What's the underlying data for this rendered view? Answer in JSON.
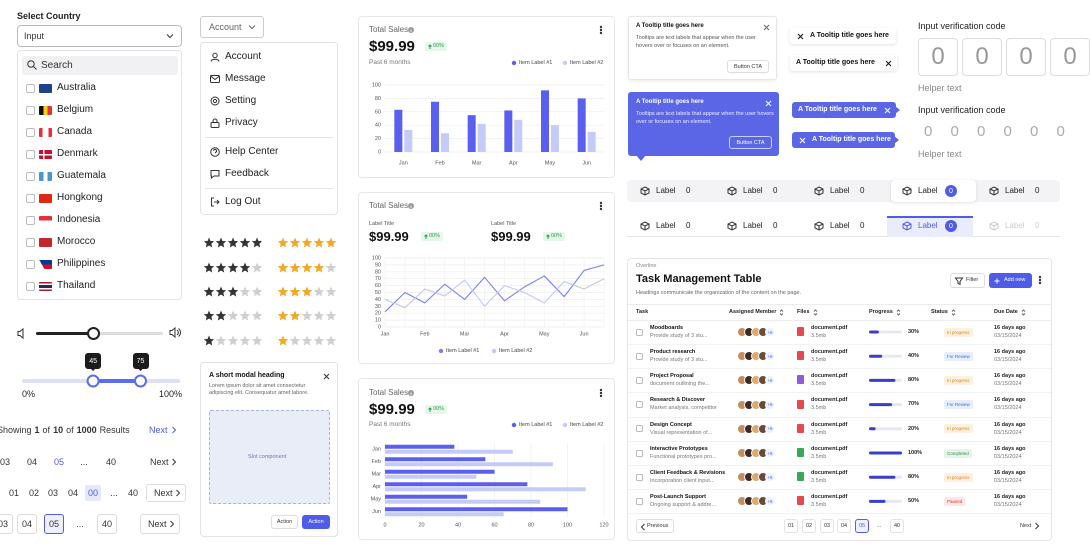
{
  "country_select": {
    "label": "Select Country",
    "placeholder": "Input",
    "search": "Search",
    "countries": [
      "Australia",
      "Belgium",
      "Canada",
      "Denmark",
      "Guatemala",
      "Hongkong",
      "Indonesia",
      "Morocco",
      "Philippines",
      "Thailand"
    ]
  },
  "range_slider": {
    "low": 45,
    "high": 75,
    "min_label": "0%",
    "max_label": "100%"
  },
  "pagination": {
    "summary": [
      "Showing",
      "1",
      "of",
      "10",
      "of",
      "1000",
      "Results"
    ],
    "next": "Next",
    "rows": [
      [
        "03",
        "04",
        "05",
        "...",
        "40"
      ],
      [
        "01",
        "02",
        "03",
        "04",
        "00",
        "...",
        "40"
      ],
      [
        "03",
        "04",
        "05",
        "...",
        "40"
      ]
    ]
  },
  "account_menu": {
    "button": "Account",
    "items": [
      "Account",
      "Message",
      "Setting",
      "Privacy",
      "Help Center",
      "Feedback",
      "Log Out"
    ]
  },
  "ratings": [
    5,
    4,
    3,
    2,
    1
  ],
  "modal": {
    "heading": "A short modal heading",
    "body": "Lorem ipsum dolor sit amet consectetur adipiscing elit. Consequatur amet labore.",
    "slot": "Slot component",
    "actions": [
      "Action",
      "Action"
    ]
  },
  "charts": [
    {
      "type": "bar",
      "title": "Total Sales",
      "value": "$99.99",
      "change": "00%",
      "period": "Past 6 months",
      "categories": [
        "Jan",
        "Feb",
        "Mar",
        "Apr",
        "May",
        "Jun"
      ],
      "series": [
        {
          "name": "Item Label #1",
          "color": "#5b5fef",
          "values": [
            63,
            75,
            55,
            62,
            92,
            80
          ]
        },
        {
          "name": "Item Label #2",
          "color": "#c5cbf8",
          "values": [
            33,
            28,
            42,
            48,
            40,
            30
          ]
        }
      ],
      "ylim": [
        0,
        100
      ],
      "yticks": [
        0,
        20,
        40,
        60,
        80,
        100
      ],
      "grid": true
    },
    {
      "type": "line",
      "title": "Total Sales",
      "kpis": [
        {
          "label": "Label Title",
          "value": "$99.99",
          "change": "00%"
        },
        {
          "label": "Label Title",
          "value": "$99.99",
          "change": "00%"
        }
      ],
      "categories": [
        "Jan",
        null,
        "Feb",
        null,
        "Mar",
        null,
        "Apr",
        null,
        "May",
        null,
        "Jun",
        null
      ],
      "series": [
        {
          "name": "Item Label #1",
          "color": "#7b81ee",
          "values": [
            22,
            50,
            35,
            62,
            40,
            72,
            38,
            58,
            74,
            44,
            82,
            90
          ]
        },
        {
          "name": "Item Label #2",
          "color": "#c3c8f5",
          "values": [
            40,
            28,
            55,
            45,
            68,
            30,
            60,
            50,
            35,
            66,
            55,
            70
          ]
        }
      ],
      "ylim": [
        0,
        100
      ],
      "yticks": [
        0,
        10,
        20,
        30,
        40,
        50,
        60,
        70,
        80,
        90,
        100
      ],
      "grid": true
    },
    {
      "type": "horizontal_bar",
      "title": "Total Sales",
      "value": "$99.99",
      "change": "00%",
      "period": "Past 6 months",
      "categories": [
        "Jan",
        "Feb",
        "Mar",
        "Apr",
        "May",
        "Jun"
      ],
      "series": [
        {
          "name": "Item Label #1",
          "color": "#5b5fef",
          "values": [
            38,
            55,
            60,
            78,
            45,
            100
          ]
        },
        {
          "name": "Item Label #2",
          "color": "#c5cbf8",
          "values": [
            70,
            92,
            50,
            110,
            85,
            65
          ]
        }
      ],
      "xlim": [
        0,
        120
      ],
      "xticks": [
        0,
        20,
        40,
        60,
        80,
        100,
        120
      ],
      "grid": true
    }
  ],
  "tooltip": {
    "title": "A Tooltip title goes here",
    "body": "Tooltips are text labels that appear when the user hovers over or focuses on an element.",
    "cta": "Button CTA"
  },
  "verification": [
    {
      "label": "Input verification code",
      "digits": [
        "0",
        "0",
        "0",
        "0"
      ],
      "helper": "Helper text"
    },
    {
      "label": "Input verification code",
      "digits": [
        "0",
        "0",
        "0",
        "0",
        "0",
        "0"
      ],
      "helper": "Helper text"
    }
  ],
  "tabs": {
    "label": "Label",
    "badge": "0"
  },
  "table": {
    "overline": "Overline",
    "title": "Task Management Table",
    "subtitle": "Headings communicate the organization of the content on the page.",
    "filter": "Filter",
    "add": "Add new",
    "columns": [
      "Task",
      "Assigned Member",
      "Files",
      "Progress",
      "Status",
      "Due Date"
    ],
    "rows": [
      {
        "name": "Moodboards",
        "desc": "Provide study of 3 stu...",
        "members": "+6",
        "file": "document.pdf",
        "size": "3.5mb",
        "file_color": "#e5484d",
        "progress": 30,
        "progress_label": "30%",
        "status": "In progress",
        "status_color": "#e8820c",
        "due": "16 days ago",
        "date": "03/15/2024"
      },
      {
        "name": "Product research",
        "desc": "Provide study of 3 stu...",
        "members": "+6",
        "file": "document.pdf",
        "size": "3.5mb",
        "file_color": "#e5484d",
        "progress": 40,
        "progress_label": "40%",
        "status": "For Review",
        "status_color": "#3b6fd8",
        "due": "16 days ago",
        "date": "03/15/2024"
      },
      {
        "name": "Project Proposal",
        "desc": "document outlining the...",
        "members": "+6",
        "file": "document.pdf",
        "size": "3.5mb",
        "file_color": "#8e5bd9",
        "progress": 80,
        "progress_label": "80%",
        "status": "In progress",
        "status_color": "#e8820c",
        "due": "16 days ago",
        "date": "03/15/2024"
      },
      {
        "name": "Research & Discover",
        "desc": "Market analysis, competitor",
        "members": "+6",
        "file": "document.pdf",
        "size": "3.5mb",
        "file_color": "#e5484d",
        "progress": 70,
        "progress_label": "70%",
        "status": "For Review",
        "status_color": "#3b6fd8",
        "due": "16 days ago",
        "date": "03/15/2024"
      },
      {
        "name": "Design Concept",
        "desc": "Visual representation of...",
        "members": "+6",
        "file": "document.pdf",
        "size": "3.5mb",
        "file_color": "#e5484d",
        "progress": 20,
        "progress_label": "20%",
        "status": "In progress",
        "status_color": "#e8820c",
        "due": "16 days ago",
        "date": "03/15/2024"
      },
      {
        "name": "Interactive Prototypes",
        "desc": "Functional prototypes pro...",
        "members": "+6",
        "file": "document.pdf",
        "size": "3.5mb",
        "file_color": "#3aa757",
        "progress": 100,
        "progress_label": "100%",
        "status": "Completed",
        "status_color": "#2a9d4a",
        "due": "16 days ago",
        "date": "03/15/2024"
      },
      {
        "name": "Client Feedback & Revisions",
        "desc": "Incorporation client input...",
        "members": "+6",
        "file": "document.pdf",
        "size": "3.5mb",
        "file_color": "#3aa757",
        "progress": 80,
        "progress_label": "80%",
        "status": "In progress",
        "status_color": "#e8820c",
        "due": "16 days ago",
        "date": "03/15/2024"
      },
      {
        "name": "Post-Launch Support",
        "desc": "Ongoing support & addre...",
        "members": "+6",
        "file": "document.pdf",
        "size": "3.5mb",
        "file_color": "#e5484d",
        "progress": 50,
        "progress_label": "50%",
        "status": "Paused",
        "status_color": "#d93b3b",
        "due": "16 days ago",
        "date": "03/15/2024"
      }
    ],
    "previous": "Previous",
    "pages": [
      "01",
      "02",
      "03",
      "04",
      "05",
      "...",
      "40"
    ],
    "next": "Next"
  }
}
